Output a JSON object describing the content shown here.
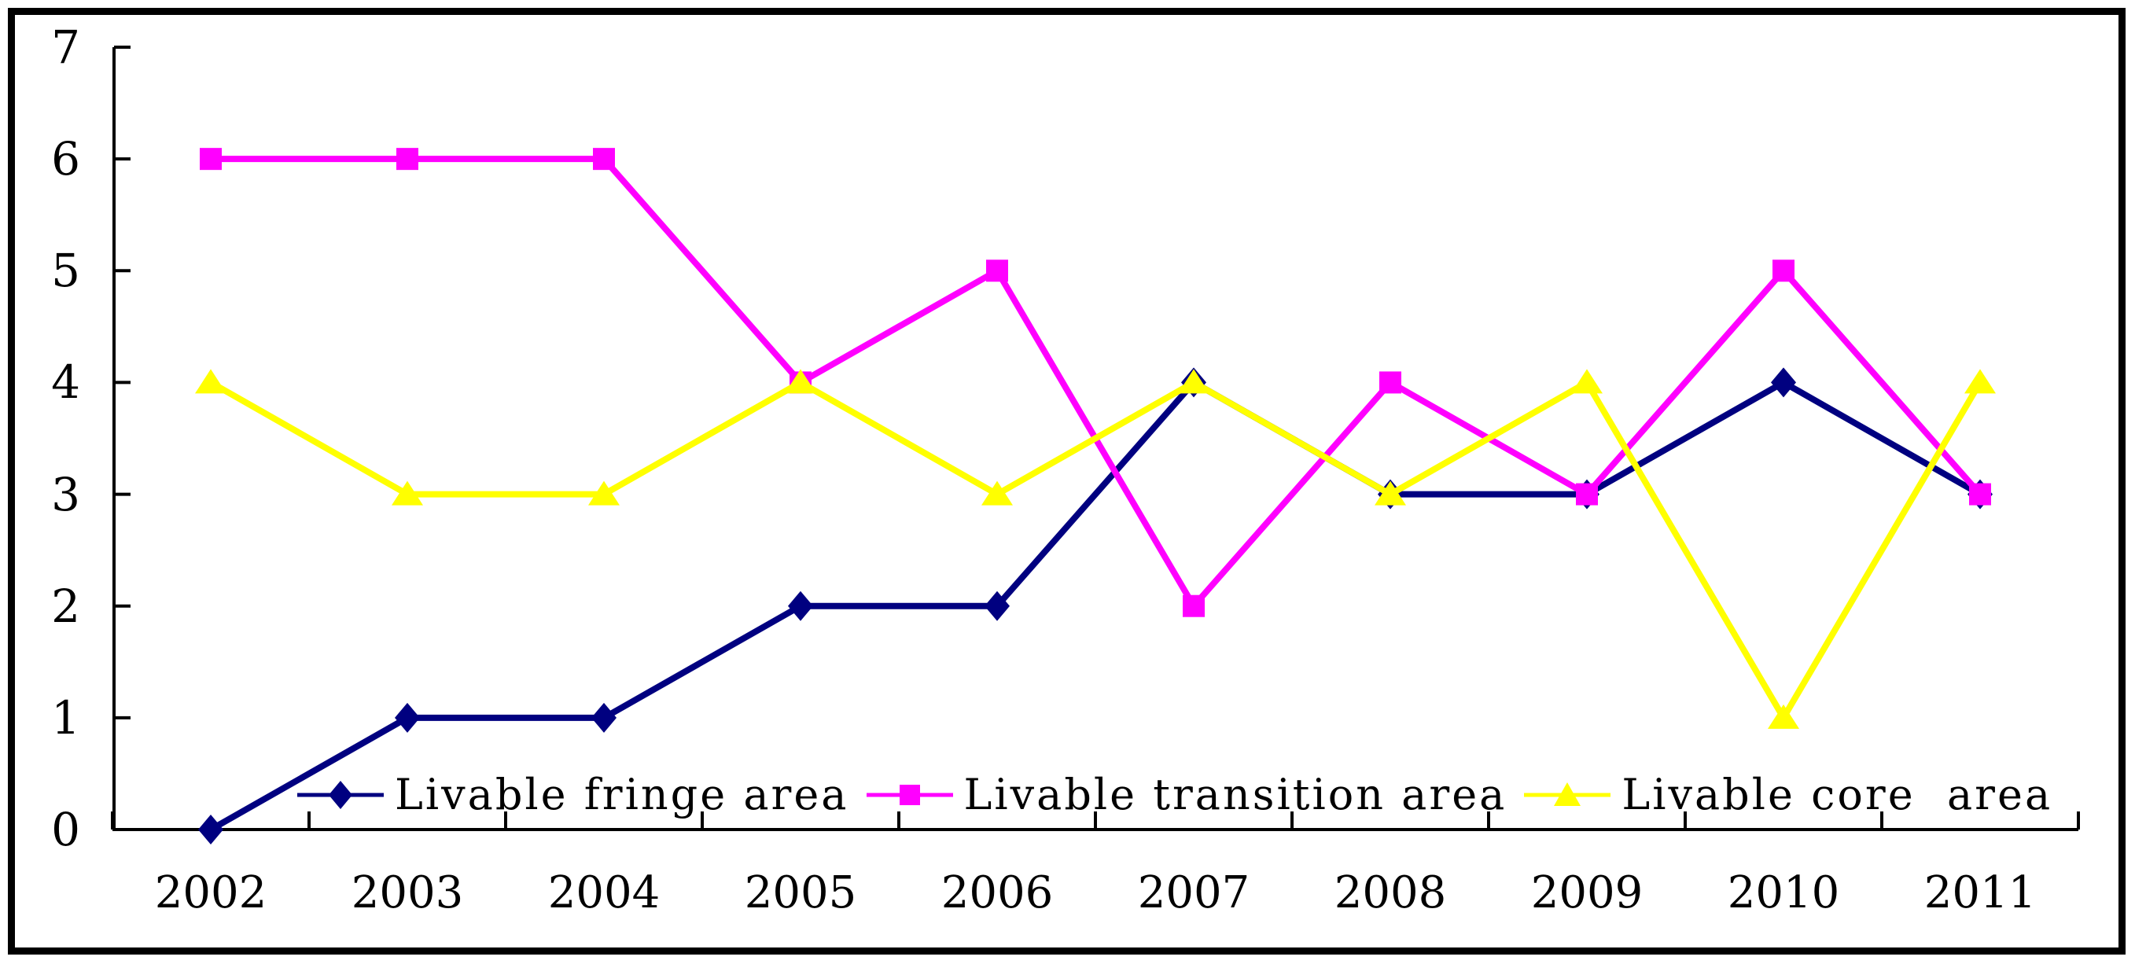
{
  "chart_data": {
    "type": "line",
    "title": "",
    "xlabel": "",
    "ylabel": "",
    "categories": [
      "2002",
      "2003",
      "2004",
      "2005",
      "2006",
      "2007",
      "2008",
      "2009",
      "2010",
      "2011"
    ],
    "series": [
      {
        "name": "Livable fringe area",
        "marker": "diamond",
        "color": "#000080",
        "values": [
          0,
          1,
          1,
          2,
          2,
          4,
          3,
          3,
          4,
          3
        ]
      },
      {
        "name": "Livable transition area",
        "marker": "square",
        "color": "#FF00FF",
        "values": [
          6,
          6,
          6,
          4,
          5,
          2,
          4,
          3,
          5,
          3
        ]
      },
      {
        "name": "Livable core  area",
        "marker": "triangle",
        "color": "#FFFF00",
        "values": [
          4,
          3,
          3,
          4,
          3,
          4,
          3,
          4,
          1,
          4
        ]
      }
    ],
    "ylim": [
      0,
      7
    ],
    "y_ticks": [
      0,
      1,
      2,
      3,
      4,
      5,
      6,
      7
    ],
    "grid": false,
    "legend_position": "bottom-inside",
    "axis_color": "#000000",
    "background": "#FFFFFF",
    "border_color": "#000000"
  }
}
